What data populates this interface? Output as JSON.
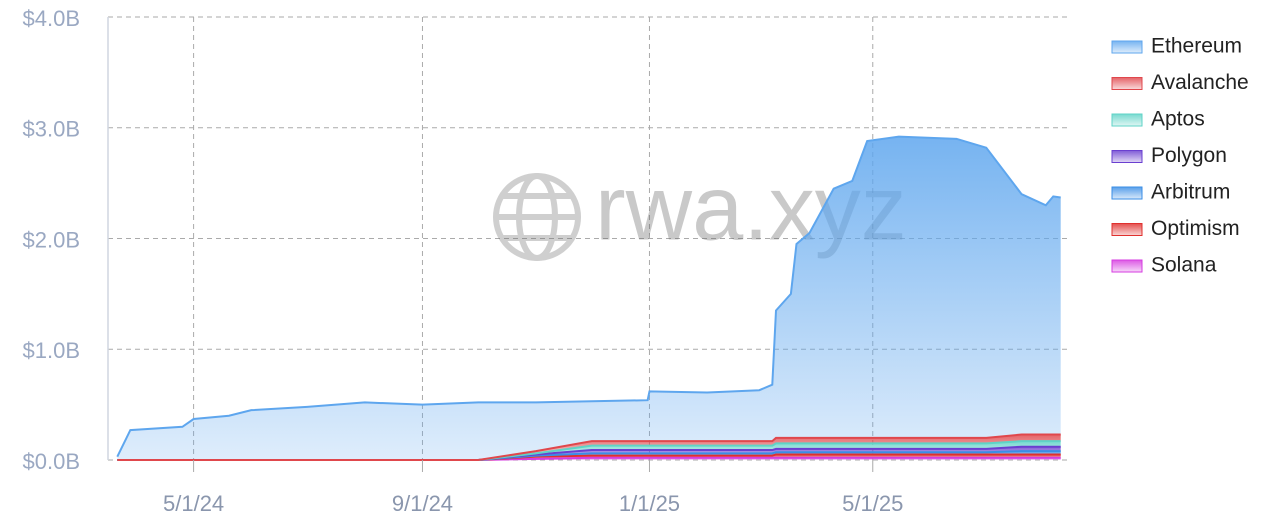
{
  "chart_data": {
    "type": "stacked-area",
    "watermark": "rwa.xyz",
    "x": [
      "2024-03-21",
      "2024-03-28",
      "2024-04-25",
      "2024-05-01",
      "2024-05-20",
      "2024-06-01",
      "2024-07-01",
      "2024-08-01",
      "2024-09-01",
      "2024-10-01",
      "2024-11-01",
      "2024-12-01",
      "2024-12-31",
      "2025-01-01",
      "2025-02-01",
      "2025-03-01",
      "2025-03-08",
      "2025-03-10",
      "2025-03-18",
      "2025-03-21",
      "2025-03-28",
      "2025-04-10",
      "2025-04-20",
      "2025-04-28",
      "2025-05-15",
      "2025-06-15",
      "2025-07-01",
      "2025-07-20",
      "2025-08-02",
      "2025-08-06",
      "2025-08-10"
    ],
    "series": [
      {
        "name": "Ethereum",
        "color": "#5ea6ee",
        "values": [
          30000000,
          270000000,
          300000000,
          370000000,
          400000000,
          450000000,
          480000000,
          520000000,
          500000000,
          520000000,
          440000000,
          360000000,
          370000000,
          450000000,
          440000000,
          460000000,
          510000000,
          1150000000,
          1300000000,
          1750000000,
          1850000000,
          2250000000,
          2320000000,
          2680000000,
          2720000000,
          2700000000,
          2620000000,
          2170000000,
          2070000000,
          2150000000,
          2140000000
        ]
      },
      {
        "name": "Avalanche",
        "color": "#e0474c",
        "values": [
          0,
          0,
          0,
          0,
          0,
          0,
          0,
          0,
          0,
          0,
          20000000,
          40000000,
          40000000,
          40000000,
          40000000,
          40000000,
          40000000,
          50000000,
          50000000,
          50000000,
          50000000,
          50000000,
          50000000,
          50000000,
          50000000,
          50000000,
          50000000,
          60000000,
          60000000,
          60000000,
          60000000
        ]
      },
      {
        "name": "Aptos",
        "color": "#5fd3c7",
        "values": [
          0,
          0,
          0,
          0,
          0,
          0,
          0,
          0,
          0,
          0,
          10000000,
          40000000,
          40000000,
          40000000,
          40000000,
          40000000,
          40000000,
          50000000,
          50000000,
          50000000,
          50000000,
          50000000,
          50000000,
          50000000,
          50000000,
          50000000,
          50000000,
          50000000,
          50000000,
          50000000,
          50000000
        ]
      },
      {
        "name": "Polygon",
        "color": "#6a3fd0",
        "values": [
          0,
          0,
          0,
          0,
          0,
          0,
          0,
          0,
          0,
          0,
          10000000,
          30000000,
          30000000,
          30000000,
          30000000,
          30000000,
          30000000,
          30000000,
          30000000,
          30000000,
          30000000,
          30000000,
          30000000,
          30000000,
          30000000,
          30000000,
          30000000,
          40000000,
          40000000,
          40000000,
          40000000
        ]
      },
      {
        "name": "Arbitrum",
        "color": "#3a8ee6",
        "values": [
          0,
          0,
          0,
          0,
          0,
          0,
          0,
          0,
          0,
          0,
          10000000,
          20000000,
          20000000,
          20000000,
          20000000,
          20000000,
          20000000,
          20000000,
          20000000,
          20000000,
          20000000,
          20000000,
          20000000,
          20000000,
          20000000,
          20000000,
          20000000,
          30000000,
          30000000,
          30000000,
          30000000
        ]
      },
      {
        "name": "Optimism",
        "color": "#e0302e",
        "values": [
          0,
          0,
          0,
          0,
          0,
          0,
          0,
          0,
          0,
          0,
          20000000,
          20000000,
          20000000,
          20000000,
          20000000,
          20000000,
          20000000,
          30000000,
          30000000,
          30000000,
          30000000,
          30000000,
          30000000,
          30000000,
          30000000,
          30000000,
          30000000,
          30000000,
          30000000,
          30000000,
          30000000
        ]
      },
      {
        "name": "Solana",
        "color": "#d63be0",
        "values": [
          0,
          0,
          0,
          0,
          0,
          0,
          0,
          0,
          0,
          0,
          10000000,
          20000000,
          20000000,
          20000000,
          20000000,
          20000000,
          20000000,
          20000000,
          20000000,
          20000000,
          20000000,
          20000000,
          20000000,
          20000000,
          20000000,
          20000000,
          20000000,
          20000000,
          20000000,
          20000000,
          20000000
        ]
      }
    ],
    "xlim": [
      "2024-03-16",
      "2025-08-15"
    ],
    "xticks": [
      {
        "value": "2024-05-01",
        "label": "5/1/24"
      },
      {
        "value": "2024-09-01",
        "label": "9/1/24"
      },
      {
        "value": "2025-01-01",
        "label": "1/1/25"
      },
      {
        "value": "2025-05-01",
        "label": "5/1/25"
      }
    ],
    "ylim": [
      0,
      4000000000
    ],
    "yticks": [
      {
        "value": 0,
        "label": "$0.0B"
      },
      {
        "value": 1000000000,
        "label": "$1.0B"
      },
      {
        "value": 2000000000,
        "label": "$2.0B"
      },
      {
        "value": 3000000000,
        "label": "$3.0B"
      },
      {
        "value": 4000000000,
        "label": "$4.0B"
      }
    ],
    "grid": true,
    "legend": "right"
  }
}
